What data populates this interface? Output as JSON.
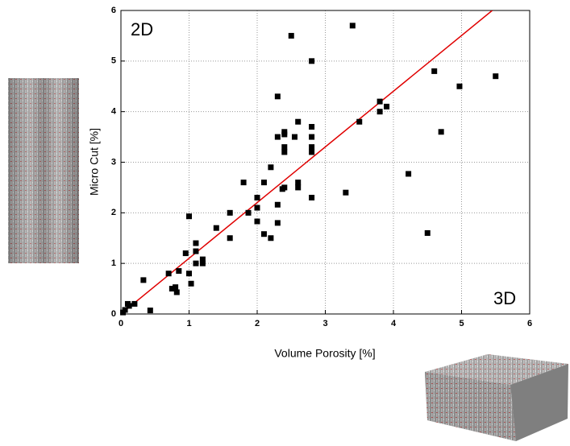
{
  "chart_data": {
    "type": "scatter",
    "x_label": "Volume Porosity [%]",
    "y_label": "Micro Cut  [%]",
    "label_2d": "2D",
    "label_3d": "3D",
    "xlim": [
      0,
      6
    ],
    "ylim": [
      0,
      6
    ],
    "xticks": [
      0,
      1,
      2,
      3,
      4,
      5,
      6
    ],
    "yticks": [
      0,
      1,
      2,
      3,
      4,
      5,
      6
    ],
    "grid": true,
    "series": [
      {
        "color": "#000000",
        "x": [
          2.5,
          3.4,
          2.8,
          4.6,
          4.97,
          5.5,
          2.3,
          3.8,
          3.9,
          3.8,
          3.5,
          4.7,
          2.6,
          2.4,
          2.4,
          2.8,
          2.55,
          2.3,
          2.8,
          2.4,
          2.4,
          2.8,
          2.8,
          2.2,
          4.22,
          1.8,
          2.1,
          2.6,
          2.6,
          2.4,
          2.37,
          3.3,
          2.8,
          2.0,
          2.0,
          2.3,
          1.6,
          1.87,
          1.0,
          2.0,
          2.3,
          1.4,
          2.1,
          2.2,
          1.6,
          4.5,
          1.1,
          0.95,
          1.1,
          1.2,
          1.2,
          1.1,
          0.7,
          1.0,
          0.85,
          0.33,
          1.03,
          0.8,
          0.75,
          0.82,
          0.1,
          0.2,
          0.12,
          0.43,
          0.06,
          0.03
        ],
        "y": [
          5.5,
          5.7,
          5.0,
          4.8,
          4.5,
          4.7,
          4.3,
          4.2,
          4.1,
          4.0,
          3.8,
          3.6,
          3.8,
          3.6,
          3.55,
          3.7,
          3.5,
          3.5,
          3.5,
          3.3,
          3.2,
          3.3,
          3.2,
          2.9,
          2.77,
          2.6,
          2.6,
          2.6,
          2.5,
          2.5,
          2.47,
          2.4,
          2.3,
          2.3,
          2.1,
          2.16,
          2.0,
          2.0,
          1.93,
          1.83,
          1.8,
          1.7,
          1.58,
          1.5,
          1.5,
          1.6,
          1.4,
          1.2,
          1.24,
          1.08,
          1.0,
          1.0,
          0.8,
          0.8,
          0.85,
          0.67,
          0.6,
          0.53,
          0.5,
          0.43,
          0.2,
          0.2,
          0.16,
          0.07,
          0.08,
          0.03
        ]
      }
    ],
    "fit": {
      "color": "#e00000",
      "x": [
        0,
        5.45
      ],
      "y": [
        0,
        6
      ]
    }
  }
}
